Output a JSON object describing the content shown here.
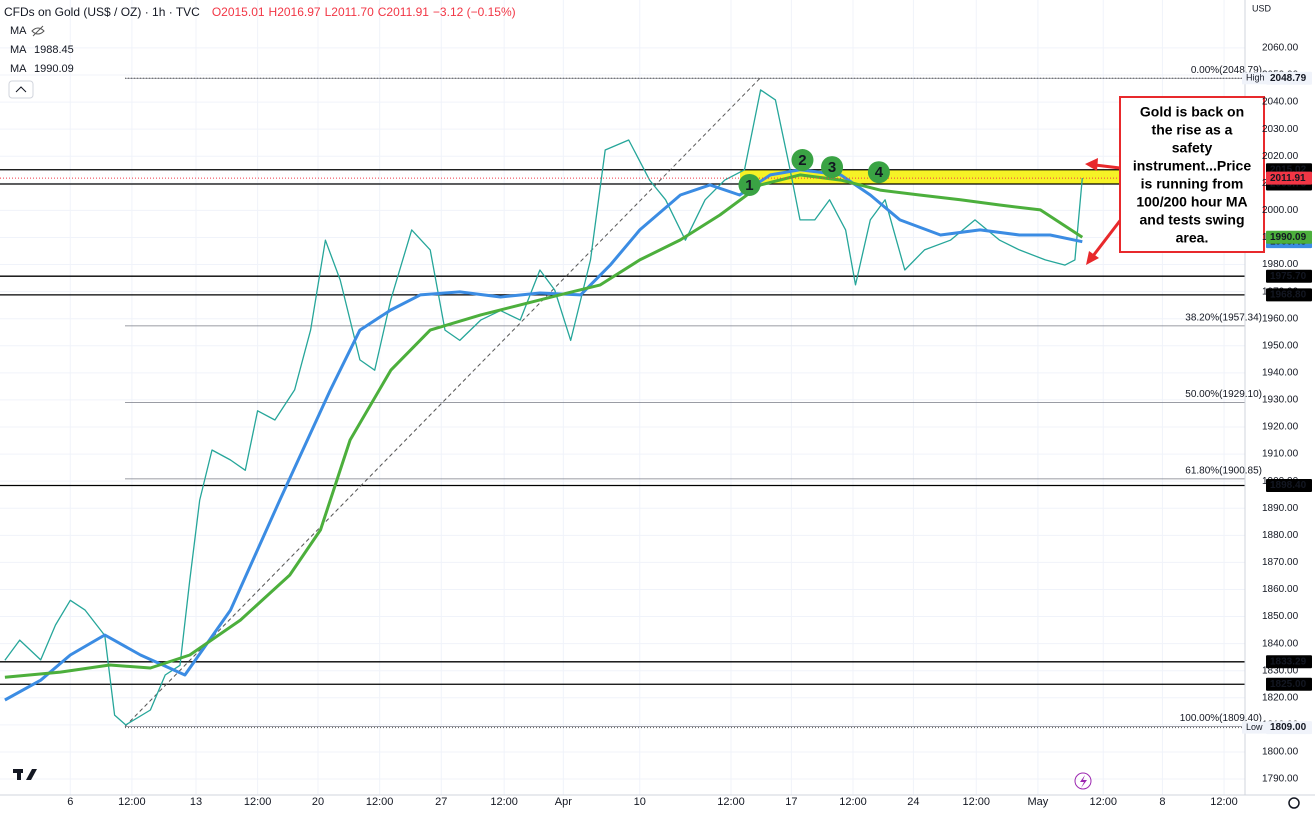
{
  "chart_data": {
    "type": "line",
    "currency": "USD",
    "header": {
      "symbol": "CFDs on Gold (US$ / OZ) · 1h · TVC",
      "ohlc": [
        "O2015.01",
        "H2016.97",
        "L2011.70",
        "C2011.91",
        "−3.12 (−0.15%)"
      ],
      "ohlc_color": "#f23645",
      "hidden_indicator": "MA"
    },
    "xlim": [
      -0.57,
      9.53
    ],
    "ylim": [
      1784.1,
      2077.7
    ],
    "grid": true,
    "xticks": [
      {
        "value": 0,
        "label": "6"
      },
      {
        "value": 0.5,
        "label": "12:00"
      },
      {
        "value": 1.02,
        "label": "13"
      },
      {
        "value": 1.52,
        "label": "12:00"
      },
      {
        "value": 2.01,
        "label": "20"
      },
      {
        "value": 2.51,
        "label": "12:00"
      },
      {
        "value": 3.01,
        "label": "27"
      },
      {
        "value": 3.52,
        "label": "12:00"
      },
      {
        "value": 4.0,
        "label": "Apr"
      },
      {
        "value": 4.62,
        "label": "10"
      },
      {
        "value": 5.36,
        "label": "12:00"
      },
      {
        "value": 5.85,
        "label": "17"
      },
      {
        "value": 6.35,
        "label": "12:00"
      },
      {
        "value": 6.84,
        "label": "24"
      },
      {
        "value": 7.35,
        "label": "12:00"
      },
      {
        "value": 7.85,
        "label": "May"
      },
      {
        "value": 8.38,
        "label": "12:00"
      },
      {
        "value": 8.86,
        "label": "8"
      },
      {
        "value": 9.36,
        "label": "12:00"
      }
    ],
    "yticks": [
      {
        "value": 1790,
        "label": "1790.00"
      },
      {
        "value": 1800,
        "label": "1800.00"
      },
      {
        "value": 1810,
        "label": "1810.00"
      },
      {
        "value": 1820,
        "label": "1820.00"
      },
      {
        "value": 1830,
        "label": "1830.00"
      },
      {
        "value": 1840,
        "label": "1840.00"
      },
      {
        "value": 1850,
        "label": "1850.00"
      },
      {
        "value": 1860,
        "label": "1860.00"
      },
      {
        "value": 1870,
        "label": "1870.00"
      },
      {
        "value": 1880,
        "label": "1880.00"
      },
      {
        "value": 1890,
        "label": "1890.00"
      },
      {
        "value": 1900,
        "label": "1900.00"
      },
      {
        "value": 1910,
        "label": "1910.00"
      },
      {
        "value": 1920,
        "label": "1920.00"
      },
      {
        "value": 1930,
        "label": "1930.00"
      },
      {
        "value": 1940,
        "label": "1940.00"
      },
      {
        "value": 1950,
        "label": "1950.00"
      },
      {
        "value": 1960,
        "label": "1960.00"
      },
      {
        "value": 1970,
        "label": "1970.00"
      },
      {
        "value": 1980,
        "label": "1980.00"
      },
      {
        "value": 1990,
        "label": "1990.00"
      },
      {
        "value": 2000,
        "label": "2000.00"
      },
      {
        "value": 2010,
        "label": "2010.00"
      },
      {
        "value": 2020,
        "label": "2020.00"
      },
      {
        "value": 2030,
        "label": "2030.00"
      },
      {
        "value": 2040,
        "label": "2040.00"
      },
      {
        "value": 2050,
        "label": "2050.00"
      },
      {
        "value": 2060,
        "label": "2060.00"
      }
    ],
    "series": [
      {
        "name": "Price",
        "color": "#26a69a",
        "x": [
          -0.53,
          -0.41,
          -0.24,
          -0.12,
          0,
          0.12,
          0.28,
          0.36,
          0.45,
          0.65,
          0.77,
          0.89,
          0.97,
          1.05,
          1.15,
          1.3,
          1.42,
          1.52,
          1.66,
          1.82,
          1.95,
          2.07,
          2.19,
          2.35,
          2.47,
          2.6,
          2.77,
          2.92,
          3.04,
          3.16,
          3.33,
          3.49,
          3.65,
          3.81,
          3.93,
          4.06,
          4.22,
          4.34,
          4.53,
          4.7,
          4.83,
          4.99,
          5.15,
          5.31,
          5.47,
          5.6,
          5.72,
          5.84,
          5.92,
          6.04,
          6.16,
          6.29,
          6.37,
          6.49,
          6.61,
          6.77,
          6.93,
          7.14,
          7.34,
          7.54,
          7.7,
          7.91,
          8.07,
          8.15,
          8.21
        ],
        "values": [
          1833.9,
          1841.3,
          1834,
          1846.9,
          1856,
          1852.4,
          1843,
          1813.6,
          1810,
          1815.5,
          1828.4,
          1832,
          1863.5,
          1893,
          1911.5,
          1907.8,
          1904,
          1926,
          1922.6,
          1933.7,
          1955.8,
          1989,
          1974.3,
          1944.8,
          1941,
          1967,
          1992.8,
          1985.4,
          1955.8,
          1952,
          1959.5,
          1963,
          1959.5,
          1978,
          1970.6,
          1952,
          1981.7,
          2022.3,
          2026,
          2011.2,
          2003.9,
          1989,
          2003.9,
          2011.2,
          2015,
          2044.5,
          2040.8,
          2015,
          1996.5,
          1996.5,
          2003.9,
          1992.8,
          1972.5,
          1996.5,
          2003.9,
          1978,
          1985.4,
          1989,
          1996.5,
          1989,
          1985.4,
          1981.7,
          1979.8,
          1981.7,
          2011.91
        ]
      },
      {
        "name": "MA",
        "color": "#3b8ce3",
        "last": 1988.45,
        "x": [
          -0.53,
          -0.24,
          0,
          0.28,
          0.57,
          0.93,
          1.3,
          1.7,
          2.11,
          2.35,
          2.6,
          2.84,
          3.16,
          3.49,
          3.81,
          4.14,
          4.38,
          4.62,
          4.95,
          5.19,
          5.43,
          5.68,
          5.92,
          6.25,
          6.49,
          6.73,
          7.06,
          7.38,
          7.7,
          7.95,
          8.21
        ],
        "values": [
          1819.2,
          1826.5,
          1835.8,
          1843.2,
          1835.8,
          1828.4,
          1852.4,
          1893,
          1933.7,
          1955.8,
          1963.2,
          1968.8,
          1969.9,
          1968,
          1969.5,
          1968.8,
          1979.8,
          1992.8,
          2005.7,
          2009.4,
          2005.7,
          2013.1,
          2015,
          2013.1,
          2005.7,
          1996.5,
          1990.9,
          1992.8,
          1990.9,
          1990.9,
          1988.45
        ]
      },
      {
        "name": "MA",
        "color": "#4caf3c",
        "last": 1990.09,
        "x": [
          -0.53,
          -0.08,
          0.32,
          0.65,
          0.97,
          1.38,
          1.78,
          2.03,
          2.27,
          2.6,
          2.92,
          3.33,
          3.65,
          3.97,
          4.3,
          4.62,
          4.95,
          5.27,
          5.6,
          5.92,
          6.25,
          6.57,
          6.89,
          7.22,
          7.54,
          7.87,
          8.21
        ],
        "values": [
          1827.6,
          1829.5,
          1832.1,
          1831,
          1835.8,
          1848.7,
          1865.3,
          1882,
          1915.2,
          1941,
          1955.8,
          1961.4,
          1965.1,
          1968.8,
          1972.5,
          1981.7,
          1989.1,
          1998.3,
          2009.4,
          2013.1,
          2011.2,
          2007.5,
          2005.7,
          2003.9,
          2002,
          2000.2,
          1990.09
        ]
      }
    ],
    "close": 2011.91,
    "levels": [
      2015.02,
      2009.75,
      {
        "value": 1975.7,
        "label": "1975.70"
      },
      {
        "value": 1968.8,
        "label": "1968.80"
      },
      {
        "value": 1898.4,
        "label": "1898.40"
      },
      1833.29,
      {
        "value": 1825,
        "label": "1825.00"
      }
    ],
    "extremes": [
      {
        "name": "High",
        "value": 2048.79
      },
      {
        "name": "Low",
        "value": 1809,
        "label": "1809.00"
      }
    ],
    "fib": [
      {
        "label": "0.00%(2048.79)",
        "value": 2048.79
      },
      {
        "label": "38.20%(1957.34)",
        "value": 1957.34
      },
      {
        "label": "50.00%(1929.10)",
        "value": 1929.1
      },
      {
        "label": "61.80%(1900.85)",
        "value": 1900.85
      },
      {
        "label": "100.00%(1809.40)",
        "value": 1809.4
      }
    ],
    "markers": [
      {
        "label": "1",
        "x": 5.51,
        "y": 2009.4
      },
      {
        "label": "2",
        "x": 5.94,
        "y": 2018.6
      },
      {
        "label": "3",
        "x": 6.18,
        "y": 2016
      },
      {
        "label": "4",
        "x": 6.56,
        "y": 2014.1
      }
    ],
    "marker_color": "#3aa344",
    "annotation": [
      "Gold is back on",
      "the rise as a",
      "safety",
      "instrument...Price",
      "is running from",
      "100/200 hour MA",
      "and tests swing",
      "area."
    ]
  }
}
